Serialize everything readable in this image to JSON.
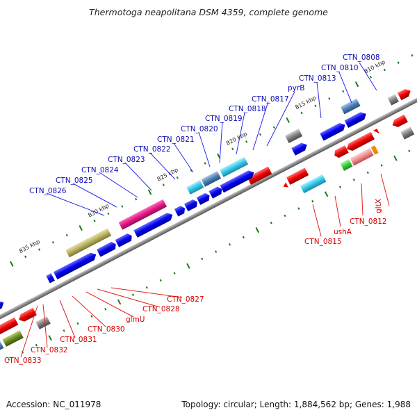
{
  "title": "Thermotoga neapolitana DSM 4359, complete genome",
  "footer": {
    "accession": "Accession: NC_011978",
    "info": "Topology: circular; Length: 1,884,562 bp; Genes: 1,988"
  },
  "scale_labels": [
    "810 kbp",
    "815 kbp",
    "820 kbp",
    "825 kbp",
    "830 kbp",
    "835 kbp"
  ],
  "genes_top": [
    "CTN_0808",
    "CTN_0810",
    "CTN_0813",
    "pyrB",
    "CTN_0817",
    "CTN_0818",
    "CTN_0819",
    "CTN_0820",
    "CTN_0821",
    "CTN_0822",
    "CTN_0823",
    "CTN_0824",
    "CTN_0825",
    "CTN_0826"
  ],
  "genes_bottom": [
    "CTN_0815",
    "ushA",
    "CTN_0812",
    "gltX",
    "CTN_0827",
    "CTN_0828",
    "glmU",
    "CTN_0830",
    "CTN_0831",
    "CTN_0832",
    "CTN_0833"
  ],
  "colors": {
    "forward_gene": "#0000ee",
    "reverse_gene": "#ee0000",
    "backbone": "#888888",
    "tick": "#1a7a1a",
    "label_top": "#0a0ab4",
    "label_bottom": "#d40000",
    "cyan": "#33c6e6",
    "magenta": "#e01884",
    "olive": "#b7b060",
    "grey": "#7f7f7f",
    "green": "#3ecc3e",
    "salmon": "#f08c8c",
    "steelblue": "#4b7fb5",
    "darkolive": "#6b8c24",
    "orange": "#f08a00"
  }
}
